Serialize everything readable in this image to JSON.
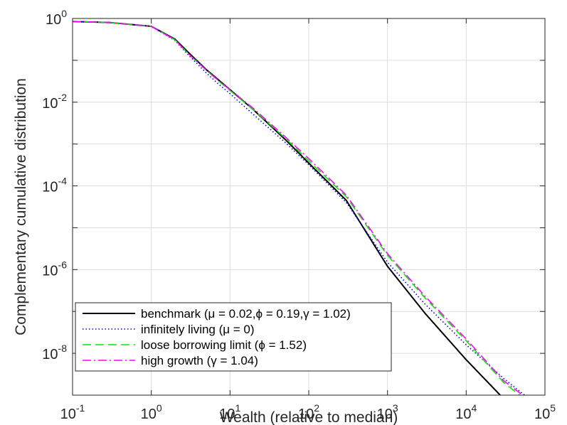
{
  "chart_data": {
    "type": "line",
    "xlabel": "Wealth (relative to median)",
    "ylabel": "Complementary cumulative distribution",
    "x_scale": "log",
    "y_scale": "log",
    "xlim": [
      0.1,
      100000
    ],
    "ylim": [
      1e-09,
      1
    ],
    "grid": true,
    "legend_position": "bottom-left",
    "x_ticks": [
      {
        "base": "10",
        "exp": "-1"
      },
      {
        "base": "10",
        "exp": "0"
      },
      {
        "base": "10",
        "exp": "1"
      },
      {
        "base": "10",
        "exp": "2"
      },
      {
        "base": "10",
        "exp": "3"
      },
      {
        "base": "10",
        "exp": "4"
      },
      {
        "base": "10",
        "exp": "5"
      }
    ],
    "y_ticks": [
      {
        "base": "10",
        "exp": "0"
      },
      {
        "base": "10",
        "exp": "-2"
      },
      {
        "base": "10",
        "exp": "-4"
      },
      {
        "base": "10",
        "exp": "-6"
      },
      {
        "base": "10",
        "exp": "-8"
      }
    ],
    "series": [
      {
        "name": "benchmark (μ = 0.02,ϕ = 0.19,γ = 1.02)",
        "color": "#000000",
        "style": "solid",
        "x": [
          0.1,
          0.3,
          1,
          2,
          3,
          5,
          7,
          10,
          20,
          50,
          100,
          300,
          1000,
          3000,
          10000,
          27000
        ],
        "y": [
          0.85,
          0.8,
          0.65,
          0.32,
          0.15,
          0.06,
          0.035,
          0.02,
          0.0065,
          0.0013,
          0.00035,
          4.5e-05,
          1.2e-06,
          9e-08,
          7e-09,
          1e-09
        ]
      },
      {
        "name": "infinitely living (μ = 0)",
        "color": "#0000ff",
        "style": "dotted",
        "x": [
          0.1,
          0.3,
          1,
          2,
          3,
          5,
          7,
          10,
          20,
          50,
          100,
          300,
          1000,
          3000,
          10000,
          30000,
          55000
        ],
        "y": [
          0.85,
          0.8,
          0.64,
          0.3,
          0.13,
          0.05,
          0.028,
          0.016,
          0.005,
          0.0011,
          0.00032,
          4e-05,
          1.5e-06,
          1.5e-07,
          1.6e-08,
          2.5e-09,
          1e-09
        ]
      },
      {
        "name": "loose borrowing limit (ϕ = 1.52)",
        "color": "#00ee00",
        "style": "dashed",
        "x": [
          0.1,
          0.3,
          1,
          2,
          3,
          5,
          7,
          10,
          20,
          50,
          100,
          300,
          1000,
          3000,
          10000,
          30000,
          48000
        ],
        "y": [
          0.85,
          0.8,
          0.65,
          0.31,
          0.14,
          0.058,
          0.033,
          0.019,
          0.0065,
          0.0014,
          0.0004,
          5.5e-05,
          2.2e-06,
          2.1e-07,
          2e-08,
          2e-09,
          1e-09
        ]
      },
      {
        "name": "high growth (γ = 1.04)",
        "color": "#ff00ff",
        "style": "dashdot",
        "x": [
          0.1,
          0.3,
          1,
          2,
          3,
          5,
          7,
          10,
          20,
          50,
          100,
          300,
          1000,
          3000,
          10000,
          30000,
          52000
        ],
        "y": [
          0.85,
          0.8,
          0.65,
          0.31,
          0.14,
          0.059,
          0.034,
          0.02,
          0.007,
          0.0015,
          0.00045,
          6e-05,
          2.4e-06,
          2.3e-07,
          2.2e-08,
          2.2e-09,
          1e-09
        ]
      }
    ]
  }
}
